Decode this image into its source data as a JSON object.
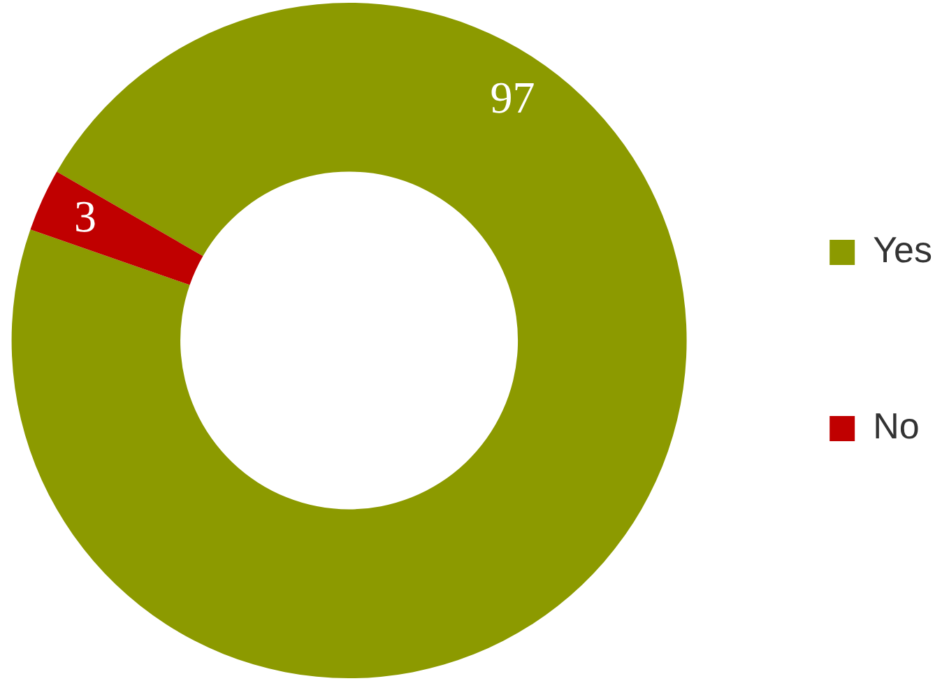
{
  "chart_data": {
    "type": "donut",
    "categories": [
      "Yes",
      "No"
    ],
    "values": [
      97,
      3
    ],
    "colors": [
      "#8c9a00",
      "#c00000"
    ],
    "data_labels": true,
    "legend": "right"
  }
}
